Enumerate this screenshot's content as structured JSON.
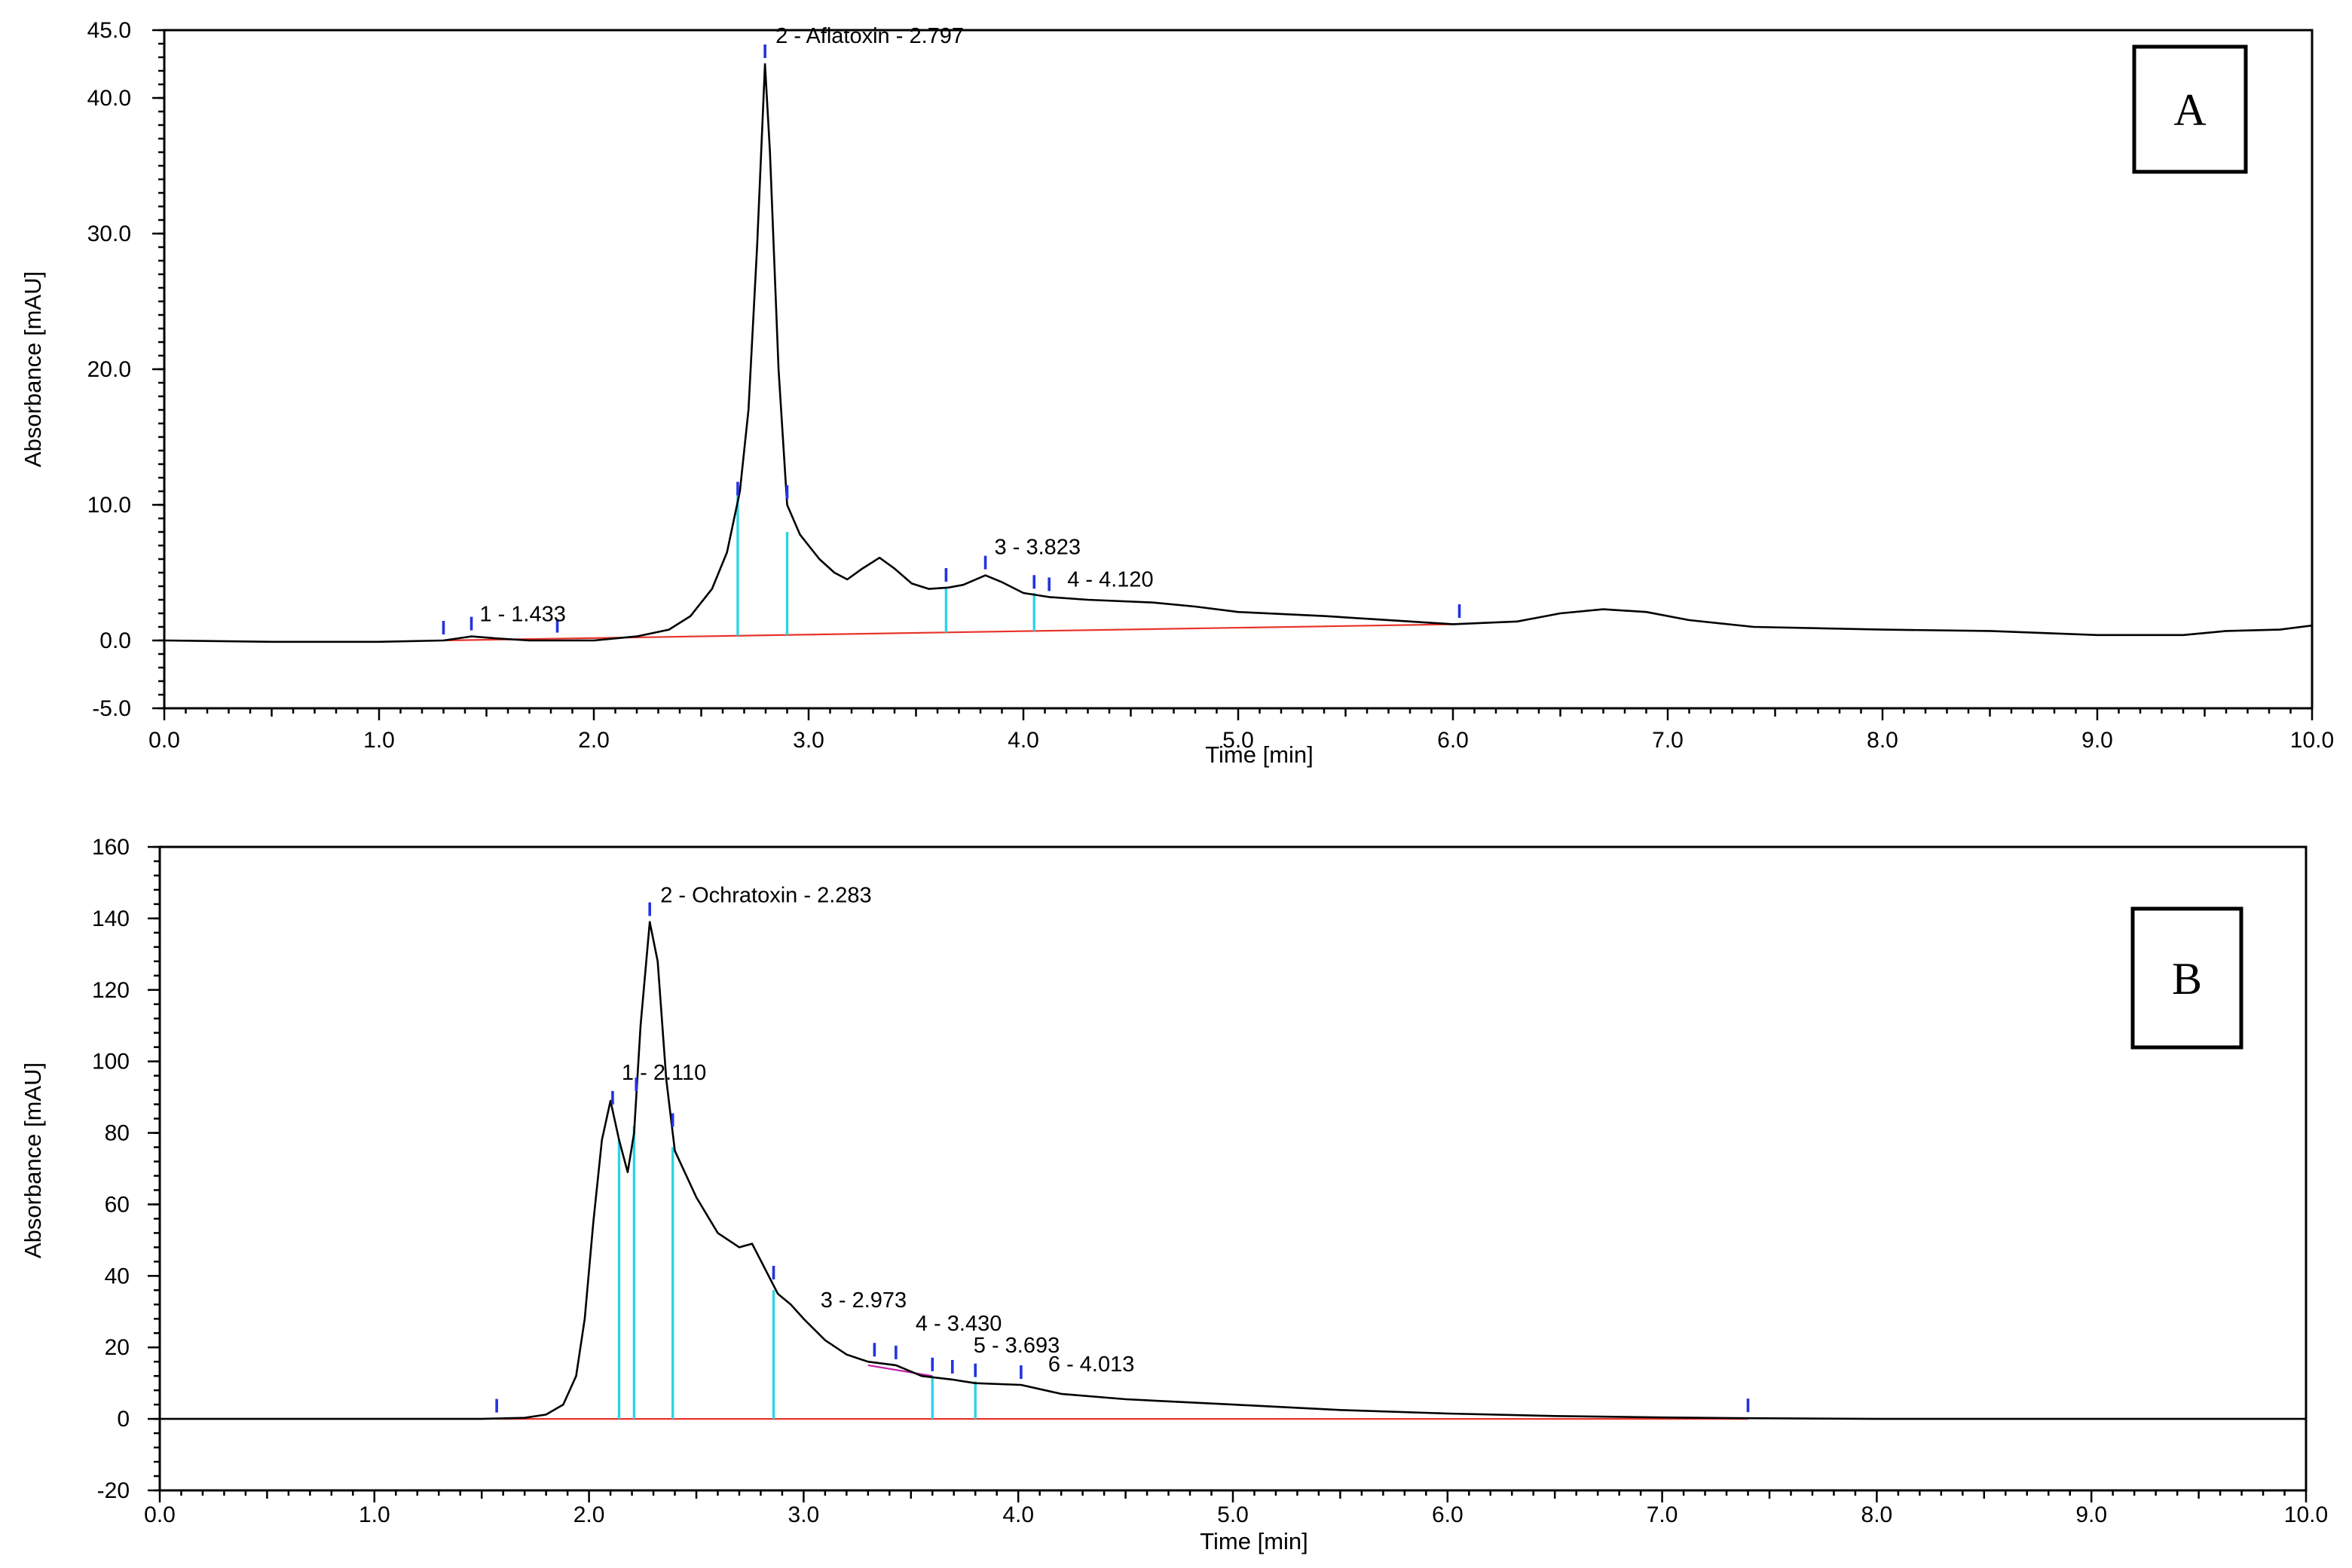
{
  "chart_data": [
    {
      "type": "line",
      "panel_label": "A",
      "xlabel": "Time [min]",
      "ylabel": "Absorbance [mAU]",
      "xlim": [
        0,
        10
      ],
      "ylim": [
        -5,
        45
      ],
      "x_ticks": [
        0,
        1,
        2,
        3,
        4,
        5,
        6,
        7,
        8,
        9,
        10
      ],
      "x_tick_labels": [
        "0.0",
        "1.0",
        "2.0",
        "3.0",
        "4.0",
        "5.0",
        "6.0",
        "7.0",
        "8.0",
        "9.0",
        "10.0"
      ],
      "y_ticks": [
        -5,
        0,
        10,
        20,
        30,
        40,
        45
      ],
      "y_tick_labels": [
        "-5.0",
        "0.0",
        "10.0",
        "20.0",
        "30.0",
        "40.0",
        "45.0"
      ],
      "grid": false,
      "series": [
        {
          "points": [
            [
              0.0,
              0.0
            ],
            [
              0.5,
              -0.1
            ],
            [
              1.0,
              -0.1
            ],
            [
              1.3,
              0.0
            ],
            [
              1.43,
              0.3
            ],
            [
              1.55,
              0.15
            ],
            [
              1.7,
              0.0
            ],
            [
              2.0,
              0.0
            ],
            [
              2.2,
              0.3
            ],
            [
              2.35,
              0.8
            ],
            [
              2.45,
              1.8
            ],
            [
              2.55,
              3.8
            ],
            [
              2.62,
              6.5
            ],
            [
              2.68,
              11.0
            ],
            [
              2.72,
              17.0
            ],
            [
              2.76,
              29.0
            ],
            [
              2.797,
              42.5
            ],
            [
              2.82,
              36.0
            ],
            [
              2.86,
              20.0
            ],
            [
              2.9,
              10.0
            ],
            [
              2.96,
              7.8
            ],
            [
              3.05,
              6.0
            ],
            [
              3.12,
              5.0
            ],
            [
              3.18,
              4.5
            ],
            [
              3.25,
              5.3
            ],
            [
              3.33,
              6.1
            ],
            [
              3.4,
              5.3
            ],
            [
              3.48,
              4.2
            ],
            [
              3.56,
              3.8
            ],
            [
              3.65,
              3.9
            ],
            [
              3.72,
              4.1
            ],
            [
              3.823,
              4.8
            ],
            [
              3.9,
              4.3
            ],
            [
              4.0,
              3.5
            ],
            [
              4.12,
              3.2
            ],
            [
              4.3,
              3.0
            ],
            [
              4.6,
              2.8
            ],
            [
              4.8,
              2.5
            ],
            [
              5.0,
              2.1
            ],
            [
              5.4,
              1.8
            ],
            [
              5.8,
              1.4
            ],
            [
              6.0,
              1.2
            ],
            [
              6.3,
              1.4
            ],
            [
              6.5,
              2.0
            ],
            [
              6.7,
              2.3
            ],
            [
              6.9,
              2.1
            ],
            [
              7.1,
              1.5
            ],
            [
              7.4,
              1.0
            ],
            [
              8.0,
              0.8
            ],
            [
              8.5,
              0.7
            ],
            [
              9.0,
              0.4
            ],
            [
              9.4,
              0.4
            ],
            [
              9.6,
              0.7
            ],
            [
              9.85,
              0.8
            ],
            [
              10.0,
              1.1
            ]
          ]
        }
      ],
      "baseline": {
        "from": [
          1.3,
          0.0
        ],
        "to": [
          6.03,
          1.2
        ]
      },
      "drop_lines": [
        {
          "x": 2.67,
          "y": 11.0
        },
        {
          "x": 2.9,
          "y": 8.0
        },
        {
          "x": 3.64,
          "y": 3.9
        },
        {
          "x": 4.05,
          "y": 3.5
        }
      ],
      "markers": [
        1.3,
        1.43,
        1.83,
        2.67,
        2.797,
        2.9,
        3.64,
        3.823,
        4.05,
        4.12,
        6.03
      ],
      "peaks": [
        {
          "label": "1 - 1.433",
          "x": 1.433,
          "y": 0.3
        },
        {
          "label": "2 - Aflatoxin  - 2.797",
          "x": 2.797,
          "y": 42.5
        },
        {
          "label": "3 - 3.823",
          "x": 3.823,
          "y": 4.8
        },
        {
          "label": "4 - 4.120",
          "x": 4.12,
          "y": 3.2
        }
      ]
    },
    {
      "type": "line",
      "panel_label": "B",
      "xlabel": "Time [min]",
      "ylabel": "Absorbance [mAU]",
      "xlim": [
        0,
        10
      ],
      "ylim": [
        -20,
        160
      ],
      "x_ticks": [
        0,
        1,
        2,
        3,
        4,
        5,
        6,
        7,
        8,
        9,
        10
      ],
      "x_tick_labels": [
        "0.0",
        "1.0",
        "2.0",
        "3.0",
        "4.0",
        "5.0",
        "6.0",
        "7.0",
        "8.0",
        "9.0",
        "10.0"
      ],
      "y_ticks": [
        -20,
        0,
        20,
        40,
        60,
        80,
        100,
        120,
        140,
        160
      ],
      "y_tick_labels": [
        "-20",
        "0",
        "20",
        "40",
        "60",
        "80",
        "100",
        "120",
        "140",
        "160"
      ],
      "grid": false,
      "series": [
        {
          "points": [
            [
              0.0,
              0.0
            ],
            [
              1.5,
              0.0
            ],
            [
              1.7,
              0.3
            ],
            [
              1.8,
              1.2
            ],
            [
              1.88,
              4.0
            ],
            [
              1.94,
              12.0
            ],
            [
              1.98,
              28.0
            ],
            [
              2.02,
              55.0
            ],
            [
              2.06,
              78.0
            ],
            [
              2.1,
              89.0
            ],
            [
              2.14,
              78.0
            ],
            [
              2.18,
              69.0
            ],
            [
              2.21,
              80.0
            ],
            [
              2.24,
              110.0
            ],
            [
              2.283,
              139.0
            ],
            [
              2.32,
              128.0
            ],
            [
              2.36,
              95.0
            ],
            [
              2.4,
              75.0
            ],
            [
              2.5,
              62.0
            ],
            [
              2.6,
              52.0
            ],
            [
              2.7,
              48.0
            ],
            [
              2.76,
              49.0
            ],
            [
              2.82,
              42.0
            ],
            [
              2.88,
              35.0
            ],
            [
              2.94,
              32.0
            ],
            [
              3.0,
              28.0
            ],
            [
              3.1,
              22.0
            ],
            [
              3.2,
              18.0
            ],
            [
              3.3,
              16.0
            ],
            [
              3.43,
              15.0
            ],
            [
              3.55,
              12.0
            ],
            [
              3.693,
              11.0
            ],
            [
              3.8,
              10.0
            ],
            [
              4.013,
              9.5
            ],
            [
              4.2,
              7.0
            ],
            [
              4.5,
              5.5
            ],
            [
              5.0,
              4.0
            ],
            [
              5.5,
              2.5
            ],
            [
              6.0,
              1.5
            ],
            [
              6.5,
              0.8
            ],
            [
              7.0,
              0.4
            ],
            [
              7.4,
              0.2
            ],
            [
              8.0,
              0.0
            ],
            [
              10.0,
              0.0
            ]
          ]
        }
      ],
      "baseline": {
        "from": [
          1.57,
          0.0
        ],
        "to": [
          7.4,
          0.0
        ]
      },
      "baseline_segment": {
        "from": [
          3.3,
          15.0
        ],
        "to": [
          3.6,
          12.0
        ]
      },
      "drop_lines": [
        {
          "x": 2.14,
          "y": 78.0
        },
        {
          "x": 2.21,
          "y": 82.0
        },
        {
          "x": 2.39,
          "y": 76.0
        },
        {
          "x": 2.86,
          "y": 36.0
        },
        {
          "x": 3.6,
          "y": 12.0
        },
        {
          "x": 3.8,
          "y": 10.5
        }
      ],
      "markers": [
        1.57,
        2.11,
        2.22,
        2.283,
        2.39,
        2.86,
        3.33,
        3.43,
        3.6,
        3.693,
        3.8,
        4.013,
        7.4
      ],
      "peaks": [
        {
          "label": "1 - 2.110",
          "x": 2.11,
          "y": 89.0
        },
        {
          "label": "2 - Ochratoxin - 2.283",
          "x": 2.283,
          "y": 139.0
        },
        {
          "label": "3 - 2.973",
          "x": 2.973,
          "y": 30.0
        },
        {
          "label": "4 - 3.430",
          "x": 3.43,
          "y": 15.0
        },
        {
          "label": "5 - 3.693",
          "x": 3.693,
          "y": 11.0
        },
        {
          "label": "6 - 4.013",
          "x": 4.013,
          "y": 9.5
        }
      ]
    }
  ]
}
